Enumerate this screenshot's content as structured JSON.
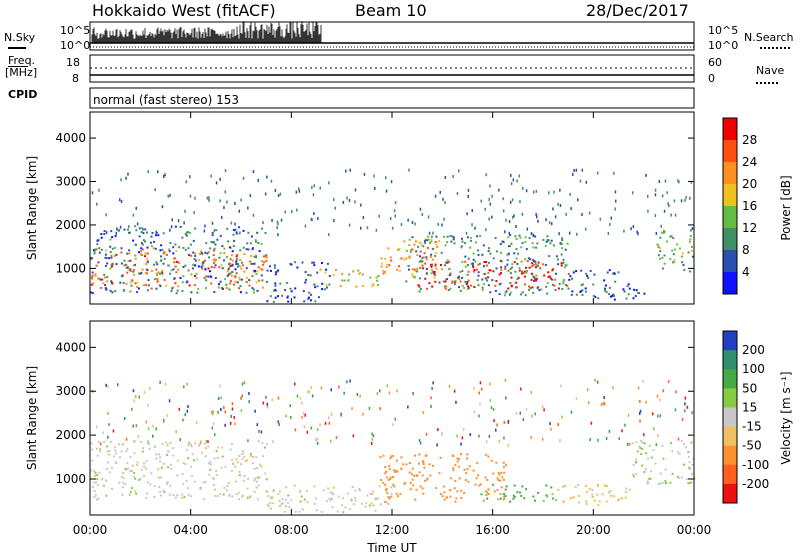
{
  "header": {
    "radar": "Hokkaido West (fitACF)",
    "beam": "Beam 10",
    "date": "28/Dec/2017"
  },
  "status_panel": {
    "nsky_label": "N.Sky",
    "nsearch_label": "N.Search",
    "freq_label_line1": "Freq.",
    "freq_label_line2": "[MHz]",
    "nave_label": "Nave",
    "cpid_label": "CPID",
    "noise_ticks_left": [
      "10^5",
      "10^0"
    ],
    "noise_ticks_right": [
      "10^5",
      "10^0"
    ],
    "freq_ticks": [
      "18",
      "8"
    ],
    "nave_ticks": [
      "60",
      "0"
    ],
    "cpid_text": "normal (fast stereo) 153"
  },
  "chart_data": [
    {
      "type": "heatmap",
      "title": "",
      "xlabel": "Time UT",
      "ylabel": "Slant Range [km]",
      "x_ticks": [
        "00:00",
        "04:00",
        "08:00",
        "12:00",
        "16:00",
        "20:00",
        "00:00"
      ],
      "xlim_hours": [
        0,
        24
      ],
      "ylim_km": [
        180,
        4600
      ],
      "y_ticks": [
        "1000",
        "2000",
        "3000",
        "4000"
      ],
      "colorbar": {
        "label": "Power [dB]",
        "ticks": [
          "4",
          "8",
          "12",
          "16",
          "20",
          "24",
          "28"
        ],
        "colors": [
          "#1010ff",
          "#2b4fb0",
          "#3f8f66",
          "#66bb44",
          "#f0c020",
          "#ff9020",
          "#ff5010",
          "#ee0000"
        ]
      },
      "regions": [
        {
          "t0": 0.0,
          "t1": 7.0,
          "r0": 550,
          "r1": 1500,
          "level": 24
        },
        {
          "t0": 0.0,
          "t1": 7.0,
          "r0": 450,
          "r1": 2000,
          "level": 8
        },
        {
          "t0": 7.0,
          "t1": 9.5,
          "r0": 250,
          "r1": 1200,
          "level": 6
        },
        {
          "t0": 9.0,
          "t1": 11.5,
          "r0": 600,
          "r1": 1000,
          "level": 18
        },
        {
          "t0": 11.5,
          "t1": 14.0,
          "r0": 800,
          "r1": 1700,
          "level": 22
        },
        {
          "t0": 13.0,
          "t1": 19.0,
          "r0": 550,
          "r1": 1200,
          "level": 30
        },
        {
          "t0": 12.5,
          "t1": 19.0,
          "r0": 400,
          "r1": 1800,
          "level": 10
        },
        {
          "t0": 19.0,
          "t1": 22.0,
          "r0": 300,
          "r1": 1000,
          "level": 6
        },
        {
          "t0": 22.5,
          "t1": 24.0,
          "r0": 900,
          "r1": 1900,
          "level": 12
        }
      ]
    },
    {
      "type": "heatmap",
      "title": "",
      "xlabel": "Time UT",
      "ylabel": "Slant Range [km]",
      "x_ticks": [
        "00:00",
        "04:00",
        "08:00",
        "12:00",
        "16:00",
        "20:00",
        "00:00"
      ],
      "xlim_hours": [
        0,
        24
      ],
      "ylim_km": [
        180,
        4600
      ],
      "y_ticks": [
        "1000",
        "2000",
        "3000",
        "4000"
      ],
      "colorbar": {
        "label": "Velocity [m s⁻¹]",
        "ticks": [
          "200",
          "100",
          "50",
          "15",
          "-15",
          "-50",
          "-100",
          "-200"
        ],
        "colors": [
          "#2040c0",
          "#2f8f70",
          "#44aa44",
          "#88cc44",
          "#c8c8c8",
          "#f0c060",
          "#ff9030",
          "#ff6020",
          "#ee1010"
        ]
      },
      "regions": [
        {
          "t0": 0.0,
          "t1": 7.0,
          "r0": 550,
          "r1": 1900,
          "level": 0
        },
        {
          "t0": 7.0,
          "t1": 12.0,
          "r0": 250,
          "r1": 900,
          "level": 0
        },
        {
          "t0": 11.5,
          "t1": 16.5,
          "r0": 500,
          "r1": 1600,
          "level": -80
        },
        {
          "t0": 15.5,
          "t1": 18.5,
          "r0": 500,
          "r1": 900,
          "level": 40
        },
        {
          "t0": 18.5,
          "t1": 21.5,
          "r0": 400,
          "r1": 900,
          "level": -30
        },
        {
          "t0": 21.5,
          "t1": 24.0,
          "r0": 900,
          "r1": 1900,
          "level": 10
        }
      ]
    }
  ]
}
